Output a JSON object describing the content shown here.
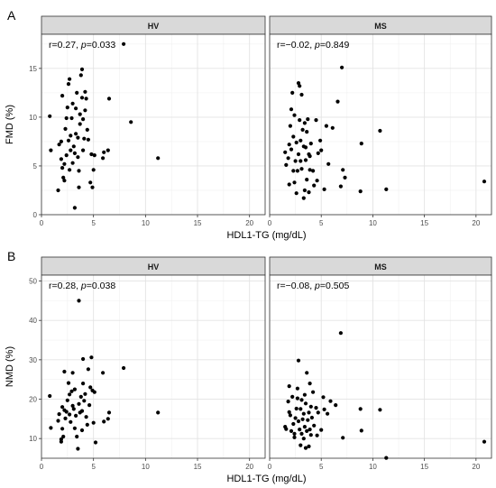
{
  "chart_data": [
    {
      "type": "scatter",
      "panel_letter": "A",
      "xlabel": "HDL1-TG (mg/dL)",
      "ylabel": "FMD (%)",
      "xlim": [
        0,
        21.5
      ],
      "ylim": [
        0,
        18.5
      ],
      "xticks": [
        0,
        5,
        10,
        15,
        20
      ],
      "yticks": [
        0,
        5,
        10,
        15
      ],
      "grid": true,
      "facets": [
        {
          "strip": "HV",
          "annotation": {
            "prefix": "r=0.27, ",
            "p_symbol": "p",
            "suffix": "=0.033"
          },
          "points": [
            [
              0.8,
              10.1
            ],
            [
              0.9,
              6.6
            ],
            [
              1.6,
              2.5
            ],
            [
              1.7,
              7.2
            ],
            [
              1.9,
              5.7
            ],
            [
              1.9,
              7.5
            ],
            [
              2.0,
              12.2
            ],
            [
              2.0,
              4.8
            ],
            [
              2.1,
              3.8
            ],
            [
              2.2,
              3.5
            ],
            [
              2.2,
              5.2
            ],
            [
              2.3,
              8.8
            ],
            [
              2.4,
              6.1
            ],
            [
              2.4,
              9.9
            ],
            [
              2.5,
              11.0
            ],
            [
              2.6,
              13.4
            ],
            [
              2.6,
              7.6
            ],
            [
              2.7,
              4.6
            ],
            [
              2.7,
              13.9
            ],
            [
              2.8,
              8.1
            ],
            [
              2.8,
              6.6
            ],
            [
              2.9,
              9.9
            ],
            [
              3.0,
              5.3
            ],
            [
              3.0,
              11.4
            ],
            [
              3.1,
              7.0
            ],
            [
              3.2,
              6.3
            ],
            [
              3.2,
              0.7
            ],
            [
              3.3,
              8.3
            ],
            [
              3.3,
              10.9
            ],
            [
              3.4,
              12.5
            ],
            [
              3.5,
              5.9
            ],
            [
              3.5,
              7.9
            ],
            [
              3.6,
              4.5
            ],
            [
              3.6,
              2.8
            ],
            [
              3.7,
              9.3
            ],
            [
              3.7,
              10.3
            ],
            [
              3.8,
              14.3
            ],
            [
              3.9,
              14.9
            ],
            [
              3.9,
              12.0
            ],
            [
              4.0,
              6.6
            ],
            [
              4.0,
              9.8
            ],
            [
              4.1,
              7.8
            ],
            [
              4.2,
              10.7
            ],
            [
              4.2,
              12.6
            ],
            [
              4.3,
              11.9
            ],
            [
              4.4,
              8.7
            ],
            [
              4.5,
              7.7
            ],
            [
              4.7,
              3.3
            ],
            [
              4.8,
              6.2
            ],
            [
              4.9,
              2.8
            ],
            [
              5.0,
              4.6
            ],
            [
              5.1,
              6.1
            ],
            [
              5.9,
              5.8
            ],
            [
              6.0,
              6.4
            ],
            [
              6.4,
              6.6
            ],
            [
              6.5,
              11.9
            ],
            [
              7.9,
              17.5
            ],
            [
              8.6,
              9.5
            ],
            [
              11.2,
              5.8
            ]
          ]
        },
        {
          "strip": "MS",
          "annotation": {
            "prefix": "r=−0.02, ",
            "p_symbol": "p",
            "suffix": "=0.849"
          },
          "points": [
            [
              1.5,
              6.4
            ],
            [
              1.6,
              5.1
            ],
            [
              1.8,
              5.8
            ],
            [
              1.9,
              7.2
            ],
            [
              1.9,
              3.1
            ],
            [
              2.0,
              9.1
            ],
            [
              2.1,
              6.7
            ],
            [
              2.1,
              10.8
            ],
            [
              2.2,
              12.5
            ],
            [
              2.3,
              4.5
            ],
            [
              2.3,
              8.0
            ],
            [
              2.4,
              3.3
            ],
            [
              2.4,
              10.2
            ],
            [
              2.5,
              5.5
            ],
            [
              2.6,
              2.2
            ],
            [
              2.6,
              7.4
            ],
            [
              2.7,
              4.5
            ],
            [
              2.8,
              13.5
            ],
            [
              2.8,
              6.2
            ],
            [
              2.9,
              13.2
            ],
            [
              2.9,
              9.7
            ],
            [
              3.0,
              5.5
            ],
            [
              3.0,
              7.6
            ],
            [
              3.1,
              4.7
            ],
            [
              3.1,
              12.3
            ],
            [
              3.2,
              8.7
            ],
            [
              3.3,
              1.7
            ],
            [
              3.3,
              7.0
            ],
            [
              3.4,
              2.5
            ],
            [
              3.4,
              9.4
            ],
            [
              3.5,
              5.6
            ],
            [
              3.5,
              6.9
            ],
            [
              3.6,
              3.6
            ],
            [
              3.6,
              8.5
            ],
            [
              3.7,
              9.8
            ],
            [
              3.8,
              6.2
            ],
            [
              3.8,
              2.3
            ],
            [
              3.9,
              4.6
            ],
            [
              3.9,
              6.0
            ],
            [
              4.0,
              7.3
            ],
            [
              4.2,
              4.5
            ],
            [
              4.3,
              3.0
            ],
            [
              4.5,
              9.7
            ],
            [
              4.6,
              3.5
            ],
            [
              4.7,
              6.3
            ],
            [
              4.9,
              7.6
            ],
            [
              5.0,
              6.6
            ],
            [
              5.3,
              2.6
            ],
            [
              5.5,
              9.1
            ],
            [
              5.7,
              5.2
            ],
            [
              6.1,
              8.9
            ],
            [
              6.6,
              11.6
            ],
            [
              6.9,
              2.9
            ],
            [
              7.0,
              15.1
            ],
            [
              7.1,
              4.6
            ],
            [
              7.3,
              3.8
            ],
            [
              8.8,
              2.4
            ],
            [
              8.9,
              7.3
            ],
            [
              10.7,
              8.6
            ],
            [
              11.3,
              2.6
            ],
            [
              20.8,
              3.4
            ]
          ]
        }
      ]
    },
    {
      "type": "scatter",
      "panel_letter": "B",
      "xlabel": "HDL1-TG (mg/dL)",
      "ylabel": "NMD (%)",
      "xlim": [
        0,
        21.5
      ],
      "ylim": [
        5,
        51.5
      ],
      "xticks": [
        0,
        5,
        10,
        15,
        20
      ],
      "yticks": [
        10,
        20,
        30,
        40,
        50
      ],
      "grid": true,
      "facets": [
        {
          "strip": "HV",
          "annotation": {
            "prefix": "r=0.28, ",
            "p_symbol": "p",
            "suffix": "=0.038"
          },
          "points": [
            [
              0.8,
              20.8
            ],
            [
              0.9,
              12.7
            ],
            [
              1.6,
              14.5
            ],
            [
              1.7,
              16.2
            ],
            [
              1.9,
              9.8
            ],
            [
              1.9,
              9.2
            ],
            [
              2.0,
              18.0
            ],
            [
              2.0,
              12.5
            ],
            [
              2.1,
              10.5
            ],
            [
              2.2,
              27.0
            ],
            [
              2.2,
              17.2
            ],
            [
              2.3,
              15.1
            ],
            [
              2.4,
              16.8
            ],
            [
              2.5,
              19.7
            ],
            [
              2.6,
              24.1
            ],
            [
              2.7,
              16.1
            ],
            [
              2.7,
              21.2
            ],
            [
              2.8,
              14.2
            ],
            [
              2.9,
              22.0
            ],
            [
              3.0,
              18.3
            ],
            [
              3.0,
              26.7
            ],
            [
              3.1,
              17.5
            ],
            [
              3.2,
              12.6
            ],
            [
              3.2,
              22.5
            ],
            [
              3.3,
              15.8
            ],
            [
              3.4,
              10.5
            ],
            [
              3.5,
              7.4
            ],
            [
              3.6,
              45.0
            ],
            [
              3.6,
              18.8
            ],
            [
              3.7,
              16.6
            ],
            [
              3.8,
              20.6
            ],
            [
              3.9,
              17.0
            ],
            [
              3.9,
              12.1
            ],
            [
              4.0,
              24.0
            ],
            [
              4.0,
              30.2
            ],
            [
              4.1,
              19.6
            ],
            [
              4.2,
              21.3
            ],
            [
              4.3,
              15.5
            ],
            [
              4.4,
              13.5
            ],
            [
              4.5,
              27.6
            ],
            [
              4.6,
              18.5
            ],
            [
              4.7,
              23.0
            ],
            [
              4.8,
              30.6
            ],
            [
              4.9,
              22.2
            ],
            [
              5.0,
              14.0
            ],
            [
              5.1,
              21.8
            ],
            [
              5.2,
              9.0
            ],
            [
              5.9,
              26.7
            ],
            [
              6.0,
              14.3
            ],
            [
              6.4,
              15.0
            ],
            [
              6.5,
              16.6
            ],
            [
              7.9,
              27.9
            ],
            [
              11.2,
              16.6
            ]
          ]
        },
        {
          "strip": "MS",
          "annotation": {
            "prefix": "r=−0.08, ",
            "p_symbol": "p",
            "suffix": "=0.505"
          },
          "points": [
            [
              1.5,
              13.0
            ],
            [
              1.6,
              12.4
            ],
            [
              1.8,
              19.4
            ],
            [
              1.9,
              16.7
            ],
            [
              1.9,
              23.3
            ],
            [
              2.0,
              15.9
            ],
            [
              2.1,
              11.9
            ],
            [
              2.2,
              20.6
            ],
            [
              2.3,
              13.7
            ],
            [
              2.4,
              11.2
            ],
            [
              2.4,
              10.3
            ],
            [
              2.5,
              15.2
            ],
            [
              2.6,
              17.6
            ],
            [
              2.7,
              20.2
            ],
            [
              2.7,
              22.7
            ],
            [
              2.8,
              29.8
            ],
            [
              2.8,
              14.4
            ],
            [
              2.9,
              12.3
            ],
            [
              3.0,
              8.3
            ],
            [
              3.0,
              17.5
            ],
            [
              3.1,
              19.8
            ],
            [
              3.1,
              11.2
            ],
            [
              3.2,
              14.9
            ],
            [
              3.3,
              10.0
            ],
            [
              3.3,
              16.3
            ],
            [
              3.4,
              21.1
            ],
            [
              3.4,
              13.0
            ],
            [
              3.5,
              7.6
            ],
            [
              3.5,
              18.9
            ],
            [
              3.6,
              11.9
            ],
            [
              3.6,
              26.7
            ],
            [
              3.7,
              14.7
            ],
            [
              3.8,
              16.6
            ],
            [
              3.8,
              8.0
            ],
            [
              3.9,
              12.3
            ],
            [
              3.9,
              24.0
            ],
            [
              4.0,
              10.9
            ],
            [
              4.0,
              18.1
            ],
            [
              4.1,
              15.3
            ],
            [
              4.2,
              21.8
            ],
            [
              4.3,
              13.3
            ],
            [
              4.5,
              17.8
            ],
            [
              4.6,
              10.8
            ],
            [
              4.7,
              16.6
            ],
            [
              5.0,
              12.2
            ],
            [
              5.2,
              20.5
            ],
            [
              5.3,
              17.4
            ],
            [
              5.6,
              16.3
            ],
            [
              5.9,
              19.5
            ],
            [
              6.4,
              18.5
            ],
            [
              6.9,
              36.8
            ],
            [
              7.1,
              10.2
            ],
            [
              8.8,
              17.5
            ],
            [
              8.9,
              12.0
            ],
            [
              10.7,
              17.3
            ],
            [
              11.3,
              5.1
            ],
            [
              20.8,
              9.2
            ]
          ]
        }
      ]
    }
  ]
}
